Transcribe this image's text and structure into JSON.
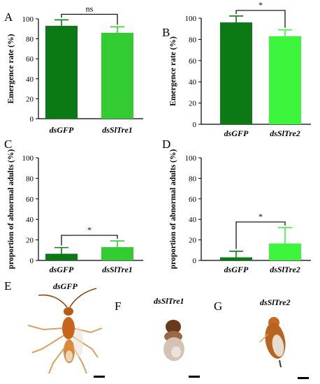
{
  "colors": {
    "dark_green": "#0b7a14",
    "light_green": "#33cc33",
    "lime_green": "#3df53d"
  },
  "chart_data": [
    {
      "panel": "A",
      "type": "bar",
      "categories": [
        "dsGFP",
        "dsSlTre1"
      ],
      "values": [
        93,
        86
      ],
      "errors": [
        6,
        6
      ],
      "colors": [
        "#0b7a14",
        "#33cc33"
      ],
      "ylabel": "Emergence rate (%)",
      "ylim": [
        0,
        100
      ],
      "yticks": [
        "0",
        "20",
        "40",
        "60",
        "80",
        "100"
      ],
      "significance": "ns"
    },
    {
      "panel": "B",
      "type": "bar",
      "categories": [
        "dsGFP",
        "dsSlTre2"
      ],
      "values": [
        96,
        83
      ],
      "errors": [
        6,
        6
      ],
      "colors": [
        "#0b7a14",
        "#3df53d"
      ],
      "ylabel": "Emergence rate (%)",
      "ylim": [
        0,
        100
      ],
      "yticks": [
        "0",
        "20",
        "40",
        "60",
        "80",
        "100"
      ],
      "significance": "*"
    },
    {
      "panel": "C",
      "type": "bar",
      "categories": [
        "dsGFP",
        "dsSlTre1"
      ],
      "values": [
        6.5,
        13
      ],
      "errors": [
        6,
        6
      ],
      "colors": [
        "#0b7a14",
        "#33cc33"
      ],
      "ylabel": "proportion of abnormal adults (%)",
      "ylim": [
        0,
        100
      ],
      "yticks": [
        "0",
        "20",
        "40",
        "60",
        "80",
        "100"
      ],
      "significance": "*"
    },
    {
      "panel": "D",
      "type": "bar",
      "categories": [
        "dsGFP",
        "dsSlTre2"
      ],
      "values": [
        3,
        16.5
      ],
      "errors": [
        6,
        15.5
      ],
      "colors": [
        "#0b7a14",
        "#3df53d"
      ],
      "ylabel": "proportion of abnormal adults (%)",
      "ylim": [
        0,
        100
      ],
      "yticks": [
        "0",
        "20",
        "40",
        "60",
        "80",
        "100"
      ],
      "significance": "*"
    }
  ],
  "photos": [
    {
      "panel": "E",
      "label": "dsGFP"
    },
    {
      "panel": "F",
      "label": "dsSlTre1"
    },
    {
      "panel": "G",
      "label": "dsSlTre2"
    }
  ]
}
